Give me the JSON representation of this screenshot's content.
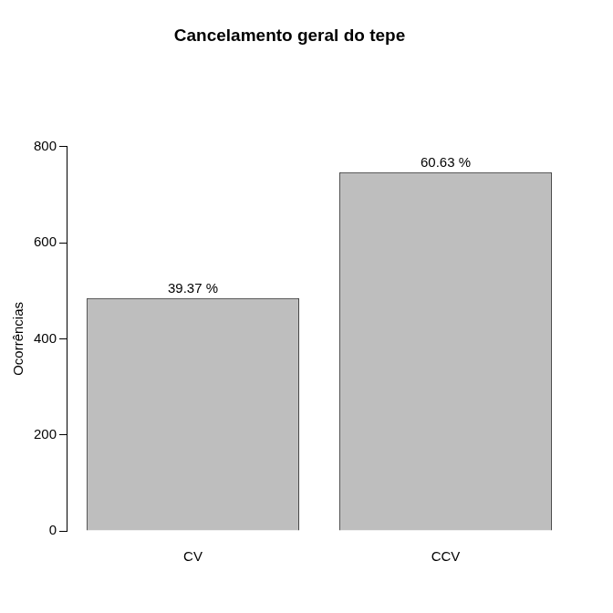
{
  "chart_data": {
    "type": "bar",
    "title": "Cancelamento geral do tepe",
    "y_label": "Ocorrências",
    "categories": [
      "CV",
      "CCV"
    ],
    "values": [
      485,
      747
    ],
    "annotations": [
      "39.37 %",
      "60.63 %"
    ],
    "color": "#bebebe",
    "ylim": [
      0,
      800
    ],
    "yticks": [
      0,
      200,
      400,
      600,
      800
    ],
    "grid": false
  }
}
